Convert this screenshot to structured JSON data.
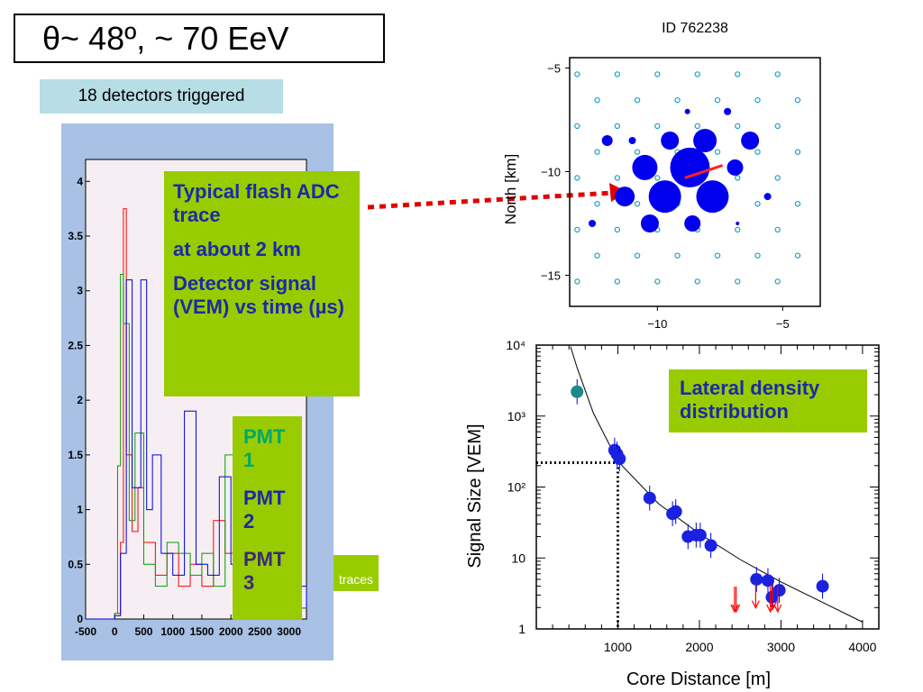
{
  "title": "θ~ 48º, ~ 70 EeV",
  "detectors_label": "18 detectors triggered",
  "flash_box": {
    "line1": "Typical flash ADC trace",
    "line2": "at about 2 km",
    "line3": "Detector signal (VEM) vs time (µs)"
  },
  "pmt_labels": [
    "PMT 1",
    "PMT 2",
    "PMT 3"
  ],
  "traces_label": "traces",
  "lateral_label": "Lateral density distribution",
  "colors": {
    "pmt1": "#00a86b",
    "pmt2": "#1b2aa8",
    "pmt3": "#3a2a7a",
    "green_box": "#99cc00"
  },
  "chart_data": [
    {
      "type": "line",
      "ylim": [
        0,
        4.2
      ],
      "xlim": [
        -500,
        3300
      ],
      "x_ticks": [
        "-500",
        "0",
        "500",
        "1000",
        "1500",
        "2000",
        "2500",
        "3000"
      ],
      "y_ticks": [
        "0",
        "0.5",
        "1",
        "1.5",
        "2",
        "2.5",
        "3",
        "3.5",
        "4"
      ],
      "series": [
        {
          "color": "#ff0000",
          "x": [
            -500,
            0,
            100,
            150,
            200,
            300,
            400,
            500,
            700,
            900,
            1100,
            1300,
            1500,
            1700,
            1900,
            2100,
            2300,
            2500,
            2700,
            2900,
            3100,
            3300
          ],
          "values": [
            0,
            0.05,
            0.7,
            3.75,
            1.5,
            0.8,
            1.2,
            0.7,
            0.4,
            0.6,
            0.3,
            0.5,
            0.3,
            0.9,
            0.6,
            0.3,
            0.4,
            0.2,
            0.3,
            0.2,
            0.1,
            0.2
          ]
        },
        {
          "color": "#00a000",
          "x": [
            -500,
            0,
            50,
            100,
            150,
            250,
            350,
            500,
            700,
            900,
            1100,
            1300,
            1500,
            1700,
            1900,
            2100,
            2300,
            2500,
            2700,
            2900,
            3100,
            3300
          ],
          "values": [
            0,
            0.05,
            1.4,
            3.15,
            2.7,
            0.9,
            1.7,
            0.5,
            0.3,
            0.7,
            0.6,
            0.4,
            0.6,
            0.3,
            1.5,
            0.4,
            0.9,
            0.3,
            0.2,
            0.2,
            0.1,
            0.1
          ]
        },
        {
          "color": "#0000dd",
          "x": [
            -500,
            0,
            100,
            200,
            300,
            450,
            550,
            650,
            800,
            1000,
            1200,
            1400,
            1600,
            1800,
            2000,
            2200,
            2400,
            2600,
            2800,
            3000,
            3200,
            3300
          ],
          "values": [
            0,
            0.03,
            0.6,
            3.1,
            1.2,
            3.1,
            1.0,
            1.5,
            0.6,
            0.4,
            1.9,
            0.5,
            0.4,
            1.3,
            0.5,
            0.7,
            0.3,
            0.4,
            0.2,
            0.2,
            0.3,
            0.1
          ]
        }
      ]
    },
    {
      "type": "scatter",
      "title": "ID 762238",
      "ylabel": "North [km]",
      "xlim": [
        -13.5,
        -3.5
      ],
      "ylim": [
        -16.5,
        -4.5
      ],
      "x_ticks": [
        -10,
        -5
      ],
      "y_ticks": [
        -5,
        -10,
        -15
      ],
      "triggered_stations": [
        {
          "x": -8.7,
          "y": -9.8,
          "size": 22
        },
        {
          "x": -9.7,
          "y": -11.2,
          "size": 18
        },
        {
          "x": -7.8,
          "y": -11.2,
          "size": 18
        },
        {
          "x": -10.5,
          "y": -9.8,
          "size": 14
        },
        {
          "x": -8.1,
          "y": -8.5,
          "size": 13
        },
        {
          "x": -9.5,
          "y": -8.5,
          "size": 10
        },
        {
          "x": -11.3,
          "y": -11.2,
          "size": 11
        },
        {
          "x": -6.3,
          "y": -8.5,
          "size": 10
        },
        {
          "x": -6.9,
          "y": -9.8,
          "size": 9
        },
        {
          "x": -10.3,
          "y": -12.5,
          "size": 10
        },
        {
          "x": -8.6,
          "y": -12.5,
          "size": 9
        },
        {
          "x": -12.0,
          "y": -8.5,
          "size": 6
        },
        {
          "x": -11.0,
          "y": -8.5,
          "size": 4
        },
        {
          "x": -8.8,
          "y": -7.1,
          "size": 3
        },
        {
          "x": -7.2,
          "y": -7.1,
          "size": 4
        },
        {
          "x": -5.6,
          "y": -11.2,
          "size": 4
        },
        {
          "x": -12.6,
          "y": -12.5,
          "size": 4
        },
        {
          "x": -6.8,
          "y": -12.5,
          "size": 2
        }
      ],
      "shower_axis": {
        "from": [
          -8.9,
          -10.3
        ],
        "to": [
          -7.4,
          -9.7
        ]
      }
    },
    {
      "type": "scatter",
      "xlabel": "Core Distance [m]",
      "ylabel": "Signal Size [VEM]",
      "xlim": [
        0,
        4200
      ],
      "ylim": [
        1,
        10000
      ],
      "log_y": true,
      "x_ticks": [
        "1000",
        "2000",
        "3000",
        "4000"
      ],
      "y_ticks": [
        "1",
        "10",
        "10²",
        "10³",
        "10⁴"
      ],
      "points_x": [
        500,
        960,
        990,
        1020,
        1390,
        1670,
        1710,
        1860,
        1960,
        2010,
        2140,
        2700,
        2840,
        2890,
        2980,
        3510
      ],
      "points_y": [
        2200,
        330,
        290,
        250,
        70,
        42,
        45,
        20,
        21,
        21,
        15,
        5,
        4.8,
        2.8,
        3.5,
        4
      ],
      "highlight_point": {
        "x": 500,
        "y": 2200
      },
      "upper_limits_x": [
        2430,
        2450,
        2690,
        2870,
        2900,
        2960
      ],
      "upper_limits_y": [
        2.2,
        2.2,
        2.5,
        2.2,
        2.4,
        2.2
      ],
      "fit_curve": {
        "x": [
          420,
          500,
          700,
          1000,
          1500,
          2000,
          2500,
          3000,
          3500,
          4000
        ],
        "y": [
          9500,
          4800,
          1100,
          230,
          58,
          22,
          9.5,
          4.6,
          2.4,
          1.25
        ]
      },
      "reference_lines": {
        "x": 1000,
        "y": 220
      }
    }
  ]
}
